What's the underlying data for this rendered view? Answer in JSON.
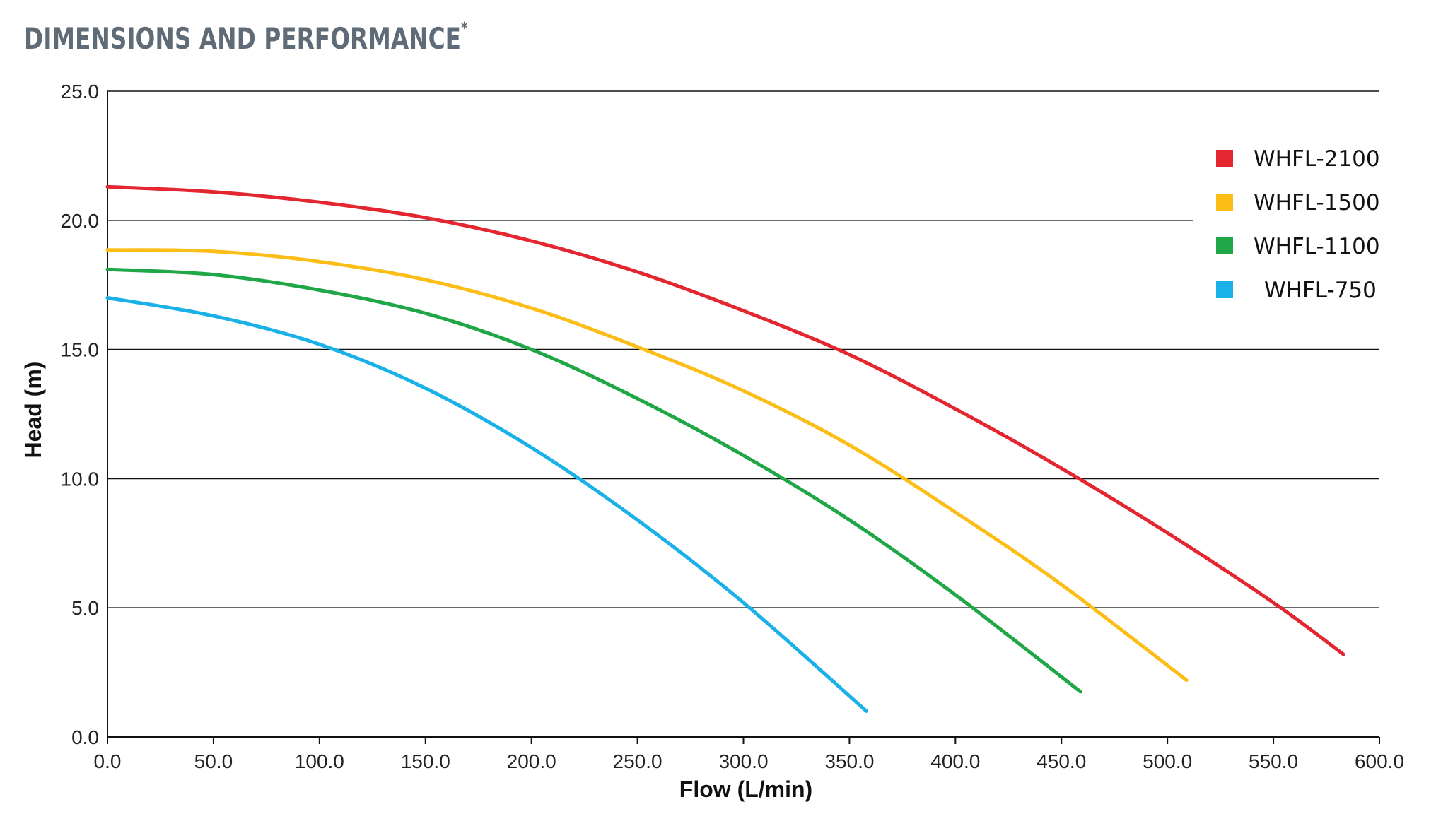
{
  "heading": {
    "text": "DIMENSIONS AND PERFORMANCE",
    "mark": "*"
  },
  "chart_data": {
    "type": "line",
    "title": "",
    "xlabel": "Flow (L/min)",
    "ylabel": "Head (m)",
    "xlim": [
      0,
      600
    ],
    "ylim": [
      0,
      25
    ],
    "x_ticks": [
      "0.0",
      "50.0",
      "100.0",
      "150.0",
      "200.0",
      "250.0",
      "300.0",
      "350.0",
      "400.0",
      "450.0",
      "500.0",
      "550.0",
      "600.0"
    ],
    "y_ticks": [
      "0.0",
      "5.0",
      "10.0",
      "15.0",
      "20.0",
      "25.0"
    ],
    "grid": "horizontal",
    "legend_position": "top-right",
    "series": [
      {
        "name": "WHFL-2100",
        "color": "#e3262f",
        "x": [
          0,
          50,
          100,
          150,
          200,
          250,
          300,
          350,
          400,
          450,
          500,
          550,
          583
        ],
        "y": [
          21.3,
          21.1,
          20.7,
          20.1,
          19.2,
          18.0,
          16.5,
          14.8,
          12.7,
          10.4,
          7.9,
          5.2,
          3.2
        ]
      },
      {
        "name": "WHFL-1500",
        "color": "#fbbd16",
        "x": [
          0,
          50,
          100,
          150,
          200,
          250,
          300,
          350,
          400,
          450,
          509
        ],
        "y": [
          18.85,
          18.8,
          18.4,
          17.7,
          16.6,
          15.1,
          13.4,
          11.3,
          8.7,
          5.9,
          2.2
        ]
      },
      {
        "name": "WHFL-1100",
        "color": "#1fa646",
        "x": [
          0,
          50,
          100,
          150,
          200,
          250,
          300,
          350,
          400,
          459
        ],
        "y": [
          18.1,
          17.9,
          17.3,
          16.4,
          15.0,
          13.1,
          10.9,
          8.4,
          5.5,
          1.75
        ]
      },
      {
        "name": "WHFL-750",
        "color": "#1ab0e8",
        "x": [
          0,
          50,
          100,
          150,
          200,
          250,
          300,
          358
        ],
        "y": [
          17.0,
          16.3,
          15.2,
          13.5,
          11.2,
          8.4,
          5.2,
          1.0
        ]
      }
    ]
  }
}
